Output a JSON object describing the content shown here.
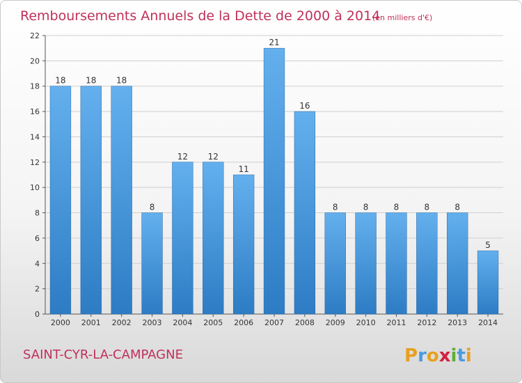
{
  "chart_data": {
    "type": "bar",
    "title": "Remboursements Annuels de la Dette de 2000 à 2014",
    "unit_note": "(en milliers d'€)",
    "categories": [
      "2000",
      "2001",
      "2002",
      "2003",
      "2004",
      "2005",
      "2006",
      "2007",
      "2008",
      "2009",
      "2010",
      "2011",
      "2012",
      "2013",
      "2014"
    ],
    "values": [
      18,
      18,
      18,
      8,
      12,
      12,
      11,
      21,
      16,
      8,
      8,
      8,
      8,
      8,
      5
    ],
    "yticks": [
      0,
      2,
      4,
      6,
      8,
      10,
      12,
      14,
      16,
      18,
      20,
      22
    ],
    "ylim": [
      0,
      22
    ],
    "grid": true,
    "xlabel": "",
    "ylabel": "",
    "bar_color": "#3d8fd6",
    "title_color": "#c0305a"
  },
  "footer": {
    "city": "SAINT-CYR-LA-CAMPAGNE",
    "logo_letters": [
      "P",
      "r",
      "o",
      "x",
      "i",
      "t",
      "i"
    ],
    "logo_colors": [
      "#e8a020",
      "#4a9be0",
      "#e8a020",
      "#d02040",
      "#60b030",
      "#4a9be0",
      "#e8a020"
    ]
  }
}
